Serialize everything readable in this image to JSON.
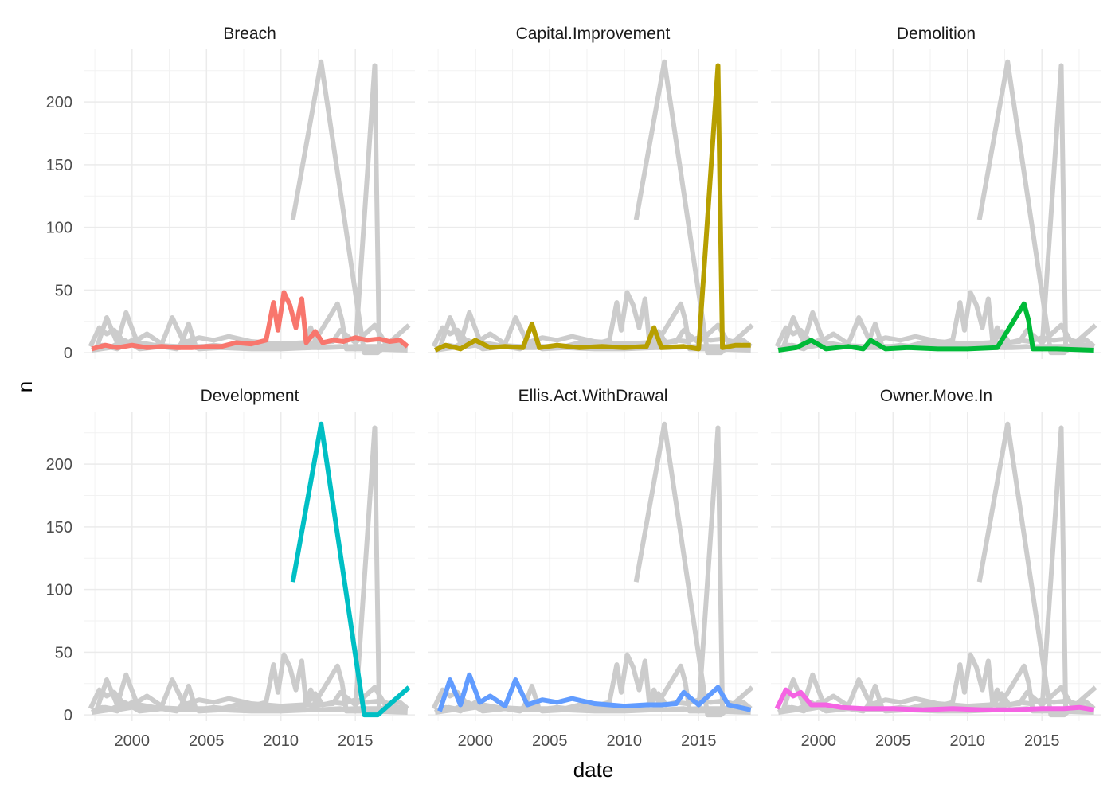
{
  "chart_data": {
    "type": "line",
    "xlabel": "date",
    "ylabel": "n",
    "x_ticks": [
      "2000",
      "2005",
      "2010",
      "2015"
    ],
    "x_tick_values": [
      2000,
      2005,
      2010,
      2015
    ],
    "y_ticks": [
      "0",
      "50",
      "100",
      "150",
      "200"
    ],
    "y_tick_values": [
      0,
      50,
      100,
      150,
      200
    ],
    "xlim": [
      1996.8,
      2019.0
    ],
    "ylim": [
      -5,
      242
    ],
    "background_color": "#cccccc",
    "facets": [
      {
        "name": "Breach",
        "color": "#f8766d",
        "points": [
          [
            1997.3,
            3
          ],
          [
            1998.2,
            6
          ],
          [
            1999.0,
            4
          ],
          [
            2000.0,
            6
          ],
          [
            2001.0,
            4
          ],
          [
            2002.0,
            5
          ],
          [
            2003.0,
            4
          ],
          [
            2004.0,
            4
          ],
          [
            2005.0,
            5
          ],
          [
            2006.0,
            5
          ],
          [
            2007.0,
            8
          ],
          [
            2008.0,
            7
          ],
          [
            2009.0,
            10
          ],
          [
            2009.5,
            40
          ],
          [
            2009.8,
            18
          ],
          [
            2010.2,
            48
          ],
          [
            2010.6,
            38
          ],
          [
            2011.0,
            20
          ],
          [
            2011.4,
            43
          ],
          [
            2011.7,
            8
          ],
          [
            2012.3,
            17
          ],
          [
            2012.8,
            8
          ],
          [
            2013.5,
            10
          ],
          [
            2014.2,
            9
          ],
          [
            2015.0,
            12
          ],
          [
            2015.8,
            10
          ],
          [
            2016.6,
            11
          ],
          [
            2017.3,
            9
          ],
          [
            2018.0,
            10
          ],
          [
            2018.5,
            5
          ]
        ]
      },
      {
        "name": "Capital.Improvement",
        "color": "#b79f00",
        "points": [
          [
            1997.3,
            2
          ],
          [
            1998.0,
            6
          ],
          [
            1999.0,
            3
          ],
          [
            2000.0,
            10
          ],
          [
            2001.0,
            4
          ],
          [
            2002.0,
            5
          ],
          [
            2003.2,
            4
          ],
          [
            2003.8,
            23
          ],
          [
            2004.3,
            4
          ],
          [
            2005.5,
            6
          ],
          [
            2007.0,
            4
          ],
          [
            2008.5,
            5
          ],
          [
            2010.0,
            4
          ],
          [
            2011.5,
            5
          ],
          [
            2012.0,
            20
          ],
          [
            2012.5,
            4
          ],
          [
            2014.0,
            5
          ],
          [
            2015.0,
            3
          ],
          [
            2016.3,
            229
          ],
          [
            2016.6,
            4
          ],
          [
            2017.5,
            6
          ],
          [
            2018.5,
            6
          ]
        ]
      },
      {
        "name": "Demolition",
        "color": "#00ba38",
        "points": [
          [
            1997.3,
            2
          ],
          [
            1998.5,
            4
          ],
          [
            1999.5,
            10
          ],
          [
            2000.5,
            3
          ],
          [
            2002.0,
            5
          ],
          [
            2003.0,
            3
          ],
          [
            2003.5,
            10
          ],
          [
            2004.5,
            3
          ],
          [
            2006.0,
            4
          ],
          [
            2008.0,
            3
          ],
          [
            2010.0,
            3
          ],
          [
            2012.0,
            4
          ],
          [
            2013.8,
            39
          ],
          [
            2014.1,
            26
          ],
          [
            2014.4,
            3
          ],
          [
            2016.0,
            3
          ],
          [
            2018.5,
            2
          ]
        ]
      },
      {
        "name": "Development",
        "color": "#00bfc4",
        "points": [
          [
            2010.8,
            106
          ],
          [
            2012.7,
            232
          ],
          [
            2015.6,
            0
          ],
          [
            2016.5,
            0
          ],
          [
            2018.6,
            22
          ]
        ]
      },
      {
        "name": "Ellis.Act.WithDrawal",
        "color": "#619cff",
        "points": [
          [
            1997.6,
            3
          ],
          [
            1998.3,
            28
          ],
          [
            1999.0,
            8
          ],
          [
            1999.6,
            32
          ],
          [
            2000.3,
            10
          ],
          [
            2001.0,
            15
          ],
          [
            2002.0,
            7
          ],
          [
            2002.7,
            28
          ],
          [
            2003.5,
            8
          ],
          [
            2004.5,
            12
          ],
          [
            2005.5,
            10
          ],
          [
            2006.5,
            13
          ],
          [
            2008.0,
            9
          ],
          [
            2010.0,
            7
          ],
          [
            2011.5,
            8
          ],
          [
            2012.5,
            8
          ],
          [
            2013.5,
            9
          ],
          [
            2014.0,
            18
          ],
          [
            2015.0,
            8
          ],
          [
            2016.3,
            22
          ],
          [
            2017.0,
            8
          ],
          [
            2018.5,
            4
          ]
        ]
      },
      {
        "name": "Owner.Move.In",
        "color": "#f564e3",
        "points": [
          [
            1997.2,
            5
          ],
          [
            1997.8,
            20
          ],
          [
            1998.3,
            15
          ],
          [
            1998.8,
            18
          ],
          [
            1999.5,
            8
          ],
          [
            2000.5,
            8
          ],
          [
            2001.5,
            6
          ],
          [
            2003.0,
            5
          ],
          [
            2005.0,
            5
          ],
          [
            2007.0,
            4
          ],
          [
            2009.0,
            5
          ],
          [
            2011.0,
            4
          ],
          [
            2013.0,
            4
          ],
          [
            2015.0,
            5
          ],
          [
            2016.5,
            5
          ],
          [
            2017.5,
            6
          ],
          [
            2018.5,
            4
          ]
        ]
      }
    ]
  }
}
